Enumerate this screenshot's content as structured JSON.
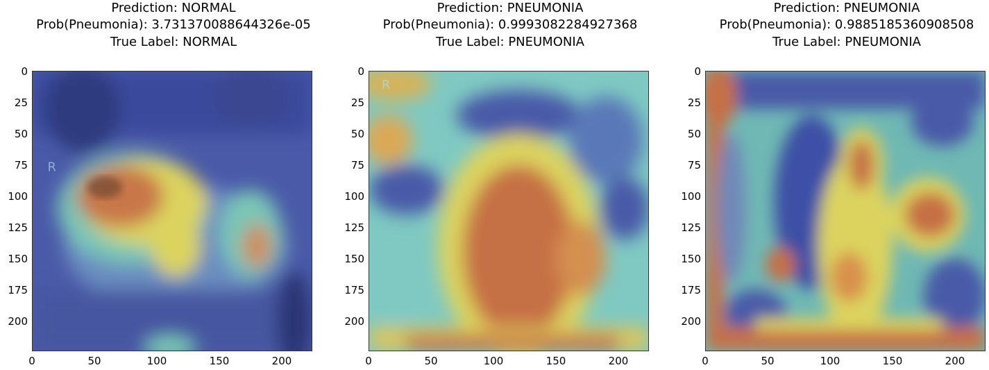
{
  "panels": [
    {
      "title": [
        "Prediction: NORMAL",
        "Prob(Pneumonia): 3.731370088644326e-05",
        "True Label: NORMAL"
      ],
      "corner_label": "R",
      "xticks": [
        "0",
        "50",
        "100",
        "150",
        "200"
      ],
      "yticks": [
        "0",
        "25",
        "50",
        "75",
        "100",
        "125",
        "150",
        "175",
        "200"
      ]
    },
    {
      "title": [
        "Prediction: PNEUMONIA",
        "Prob(Pneumonia): 0.9993082284927368",
        "True Label: PNEUMONIA"
      ],
      "corner_label": "R",
      "xticks": [
        "0",
        "50",
        "100",
        "150",
        "200"
      ],
      "yticks": [
        "0",
        "25",
        "50",
        "75",
        "100",
        "125",
        "150",
        "175",
        "200"
      ]
    },
    {
      "title": [
        "Prediction: PNEUMONIA",
        "Prob(Pneumonia): 0.9885185360908508",
        "True Label: PNEUMONIA"
      ],
      "xticks": [
        "0",
        "50",
        "100",
        "150",
        "200"
      ],
      "yticks": [
        "0",
        "25",
        "50",
        "75",
        "100",
        "125",
        "150",
        "175",
        "200"
      ]
    }
  ],
  "colors": {
    "blue": "#3e4fa6",
    "cyan": "#77c8c0",
    "yellow": "#dcd35e",
    "orange": "#c67045"
  }
}
